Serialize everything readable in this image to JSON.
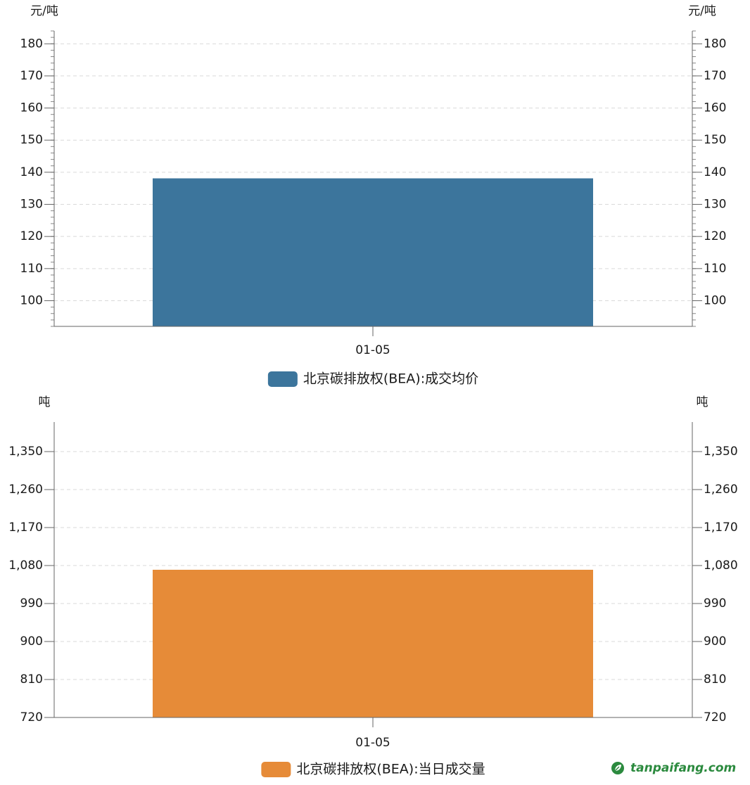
{
  "chart_data": [
    {
      "type": "bar",
      "categories": [
        "01-05"
      ],
      "series": [
        {
          "name": "北京碳排放权(BEA):成交均价",
          "values": [
            138.1
          ],
          "color": "#3c759c"
        }
      ],
      "y_unit_left": "元/吨",
      "y_unit_right": "元/吨",
      "ylim": [
        92,
        184
      ],
      "yticks": [
        100,
        110,
        120,
        130,
        140,
        150,
        160,
        170,
        180
      ],
      "ytick_labels": [
        "100",
        "110",
        "120",
        "130",
        "140",
        "150",
        "160",
        "170",
        "180"
      ],
      "grid": true,
      "legend_position": "bottom"
    },
    {
      "type": "bar",
      "categories": [
        "01-05"
      ],
      "series": [
        {
          "name": "北京碳排放权(BEA):当日成交量",
          "values": [
            1070
          ],
          "color": "#e68b38"
        }
      ],
      "y_unit_left": "吨",
      "y_unit_right": "吨",
      "ylim": [
        720,
        1420
      ],
      "yticks": [
        720,
        810,
        900,
        990,
        1080,
        1170,
        1260,
        1350
      ],
      "ytick_labels": [
        "720",
        "810",
        "900",
        "990",
        "1,080",
        "1,170",
        "1,260",
        "1,350"
      ],
      "grid": true,
      "legend_position": "bottom"
    }
  ],
  "watermark": {
    "text": "tanpaifang.com",
    "color": "#2b8a3e",
    "icon": "leaf-logo-icon"
  }
}
